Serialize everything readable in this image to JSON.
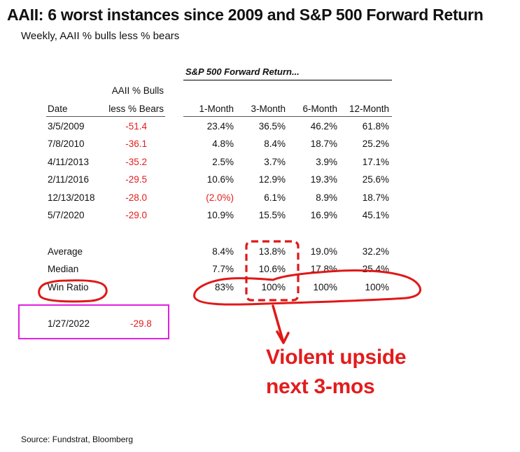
{
  "title": "AAII: 6 worst instances since 2009 and S&P 500 Forward Return",
  "subtitle": "Weekly, AAII % bulls less % bears",
  "table": {
    "group_header": "S&P 500 Forward Return...",
    "aaii_header_line1": "AAII % Bulls",
    "headers": [
      "Date",
      "less % Bears",
      "1-Month",
      "3-Month",
      "6-Month",
      "12-Month"
    ],
    "rows": [
      [
        "3/5/2009",
        "-51.4",
        "23.4%",
        "36.5%",
        "46.2%",
        "61.8%"
      ],
      [
        "7/8/2010",
        "-36.1",
        "4.8%",
        "8.4%",
        "18.7%",
        "25.2%"
      ],
      [
        "4/11/2013",
        "-35.2",
        "2.5%",
        "3.7%",
        "3.9%",
        "17.1%"
      ],
      [
        "2/11/2016",
        "-29.5",
        "10.6%",
        "12.9%",
        "19.3%",
        "25.6%"
      ],
      [
        "12/13/2018",
        "-28.0",
        "(2.0%)",
        "6.1%",
        "8.9%",
        "18.7%"
      ],
      [
        "5/7/2020",
        "-29.0",
        "10.9%",
        "15.5%",
        "16.9%",
        "45.1%"
      ]
    ],
    "summary": [
      [
        "Average",
        "8.4%",
        "13.8%",
        "19.0%",
        "32.2%"
      ],
      [
        "Median",
        "7.7%",
        "10.6%",
        "17.8%",
        "25.4%"
      ],
      [
        "Win Ratio",
        "83%",
        "100%",
        "100%",
        "100%"
      ]
    ],
    "current": {
      "date": "1/27/2022",
      "value": "-29.8"
    }
  },
  "annotation": {
    "line1": "Violent upside",
    "line2": "next 3-mos"
  },
  "source": "Source: Fundstrat, Bloomberg",
  "colors": {
    "negative": "#e31c1c",
    "annotation": "#e31c1c",
    "highlight_box": "#e020e0"
  }
}
